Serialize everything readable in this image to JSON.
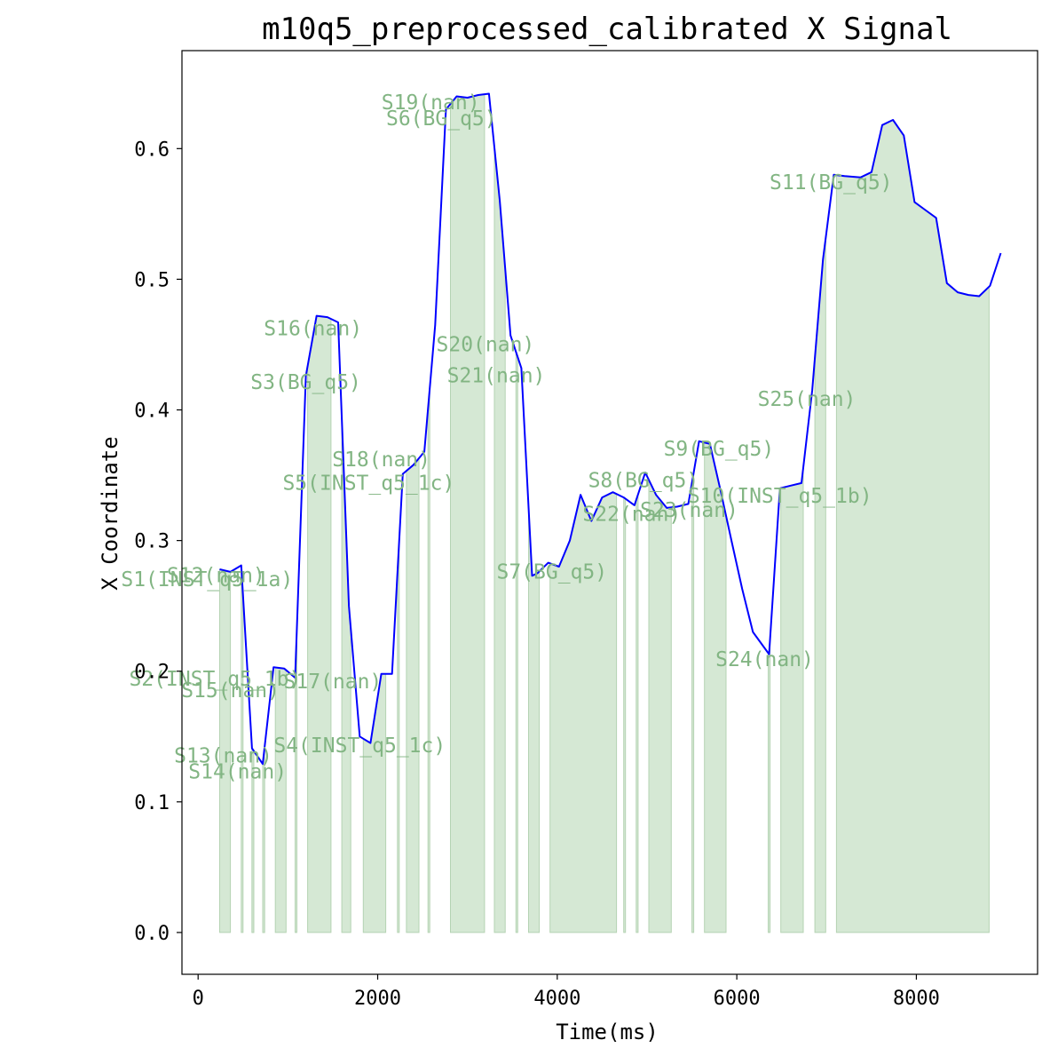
{
  "chart_data": {
    "type": "line",
    "title": "m10q5_preprocessed_calibrated X Signal",
    "xlabel": "Time(ms)",
    "ylabel": "X Coordinate",
    "xlim": [
      -180,
      9350
    ],
    "ylim": [
      -0.032,
      0.675
    ],
    "xticks": [
      0,
      2000,
      4000,
      6000,
      8000
    ],
    "yticks": [
      0.0,
      0.1,
      0.2,
      0.3,
      0.4,
      0.5,
      0.6
    ],
    "ytick_labels": [
      "0.0",
      "0.1",
      "0.2",
      "0.3",
      "0.4",
      "0.5",
      "0.6"
    ],
    "grid": false,
    "colors": {
      "line": "#0000ff",
      "fill": "#d5e8d4",
      "fill_edge": "#b5d3b3",
      "label": "#82b583"
    },
    "line": {
      "x": [
        240,
        360,
        480,
        600,
        720,
        840,
        960,
        1080,
        1200,
        1320,
        1440,
        1560,
        1680,
        1800,
        1920,
        2040,
        2160,
        2280,
        2400,
        2520,
        2640,
        2760,
        2880,
        3000,
        3120,
        3240,
        3360,
        3480,
        3600,
        3720,
        3780,
        3900,
        4020,
        4140,
        4260,
        4380,
        4500,
        4620,
        4740,
        4860,
        4980,
        5100,
        5220,
        5340,
        5460,
        5580,
        5700,
        5820,
        5940,
        6060,
        6180,
        6360,
        6480,
        6600,
        6720,
        6840,
        6960,
        7080,
        7200,
        7380,
        7500,
        7620,
        7740,
        7860,
        7980,
        8100,
        8220,
        8340,
        8460,
        8580,
        8700,
        8820,
        8940
      ],
      "y": [
        0.278,
        0.276,
        0.281,
        0.141,
        0.129,
        0.203,
        0.202,
        0.195,
        0.426,
        0.472,
        0.471,
        0.467,
        0.25,
        0.15,
        0.145,
        0.198,
        0.198,
        0.351,
        0.358,
        0.368,
        0.465,
        0.63,
        0.64,
        0.639,
        0.641,
        0.642,
        0.56,
        0.457,
        0.432,
        0.273,
        0.275,
        0.283,
        0.28,
        0.3,
        0.335,
        0.315,
        0.333,
        0.337,
        0.333,
        0.327,
        0.352,
        0.335,
        0.325,
        0.326,
        0.328,
        0.376,
        0.374,
        0.338,
        0.3,
        0.263,
        0.23,
        0.213,
        0.34,
        0.342,
        0.344,
        0.415,
        0.515,
        0.58,
        0.579,
        0.578,
        0.582,
        0.618,
        0.622,
        0.61,
        0.559,
        0.553,
        0.547,
        0.497,
        0.49,
        0.488,
        0.487,
        0.495,
        0.52
      ]
    },
    "segments": [
      {
        "label": "S1(INST_q5_1a)",
        "start": 240,
        "end": 360,
        "label_x": 100,
        "label_y": 0.265
      },
      {
        "label": "S12(nan)",
        "start": 480,
        "end": 500,
        "label_x": 200,
        "label_y": 0.268
      },
      {
        "label": "S2(INST_q5_1b)",
        "start": 600,
        "end": 620,
        "label_x": 190,
        "label_y": 0.189
      },
      {
        "label": "S15(nan)",
        "start": 720,
        "end": 740,
        "label_x": 360,
        "label_y": 0.18
      },
      {
        "label": "S17(nan)",
        "start": 860,
        "end": 980,
        "label_x": 1500,
        "label_y": 0.187
      },
      {
        "label": "S4(INST_q5_1c)",
        "start": 1080,
        "end": 1100,
        "label_x": 1800,
        "label_y": 0.138
      },
      {
        "label": "S13(nan)",
        "start": 600,
        "end": 620,
        "label_x": 280,
        "label_y": 0.13
      },
      {
        "label": "S14(nan)",
        "start": 720,
        "end": 740,
        "label_x": 440,
        "label_y": 0.118
      },
      {
        "label": "S3(BG_q5)",
        "start": 1220,
        "end": 1480,
        "label_x": 1200,
        "label_y": 0.416
      },
      {
        "label": "S16(nan)",
        "start": 1600,
        "end": 1700,
        "label_x": 1280,
        "label_y": 0.457
      },
      {
        "label": "S5(INST_q5_1c)",
        "start": 1840,
        "end": 2090,
        "label_x": 1900,
        "label_y": 0.339
      },
      {
        "label": "S18(nan)",
        "start": 2220,
        "end": 2240,
        "label_x": 2040,
        "label_y": 0.357
      },
      {
        "label": "S20(nan)",
        "start": 2320,
        "end": 2460,
        "label_x": 3200,
        "label_y": 0.445
      },
      {
        "label": "S21(nan)",
        "start": 2560,
        "end": 2580,
        "label_x": 3320,
        "label_y": 0.421
      },
      {
        "label": "S6(BG_q5)",
        "start": 2810,
        "end": 3190,
        "label_x": 2710,
        "label_y": 0.618
      },
      {
        "label": "S19(nan)",
        "start": 3300,
        "end": 3420,
        "label_x": 2590,
        "label_y": 0.63
      },
      {
        "label": "S7(BG_q5)",
        "start": 3540,
        "end": 3560,
        "label_x": 3940,
        "label_y": 0.271
      },
      {
        "label": "S22(nan)",
        "start": 3680,
        "end": 3800,
        "label_x": 4830,
        "label_y": 0.315
      },
      {
        "label": "S8(BG_q5)",
        "start": 3920,
        "end": 4660,
        "label_x": 4960,
        "label_y": 0.341
      },
      {
        "label": "S23(nan)",
        "start": 4740,
        "end": 4760,
        "label_x": 5470,
        "label_y": 0.318
      },
      {
        "label": "S9(BG_q5)",
        "start": 4880,
        "end": 4900,
        "label_x": 5800,
        "label_y": 0.365
      },
      {
        "label": "S10(INST_q5_1b)",
        "start": 5020,
        "end": 5270,
        "label_x": 6480,
        "label_y": 0.329
      },
      {
        "label": "S24(nan)",
        "start": 5500,
        "end": 5520,
        "label_x": 6310,
        "label_y": 0.204
      },
      {
        "label": "S25(nan)",
        "start": 5640,
        "end": 5880,
        "label_x": 6780,
        "label_y": 0.403
      },
      {
        "label": "S11(BG_q5)",
        "start": 6350,
        "end": 6370,
        "label_x": 7050,
        "label_y": 0.569
      },
      {
        "label": "",
        "start": 6490,
        "end": 6740,
        "label_x": 0,
        "label_y": 0
      },
      {
        "label": "",
        "start": 6870,
        "end": 6990,
        "label_x": 0,
        "label_y": 0
      },
      {
        "label": "",
        "start": 7110,
        "end": 8810,
        "label_x": 0,
        "label_y": 0
      }
    ]
  }
}
